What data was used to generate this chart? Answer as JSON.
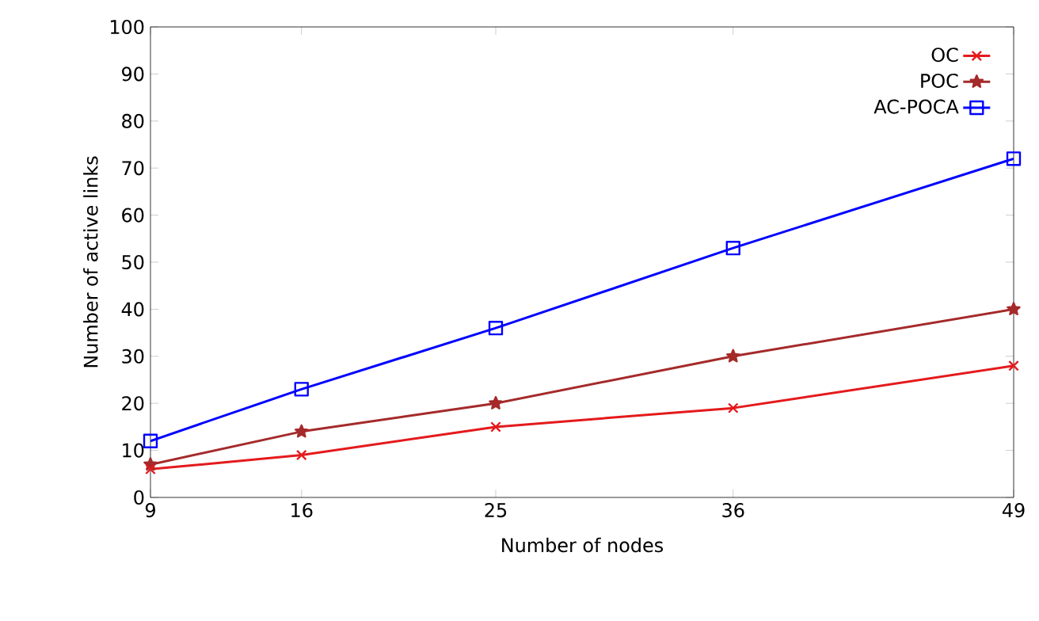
{
  "chart_data": {
    "type": "line",
    "xlabel": "Number of nodes",
    "ylabel": "Number of active links",
    "x": [
      9,
      16,
      25,
      36,
      49
    ],
    "xlim": [
      9,
      49
    ],
    "xticks": [
      9,
      16,
      25,
      36,
      49
    ],
    "ylim": [
      0,
      100
    ],
    "yticks": [
      0,
      10,
      20,
      30,
      40,
      50,
      60,
      70,
      80,
      90,
      100
    ],
    "legend": "top right",
    "grid": false,
    "line_style": "solid",
    "series": [
      {
        "name": "OC",
        "color": "#e41a1c",
        "marker": "cross",
        "values": [
          6,
          9,
          15,
          19,
          28
        ]
      },
      {
        "name": "POC",
        "color": "#a52a2a",
        "marker": "star",
        "values": [
          7,
          14,
          20,
          30,
          40
        ]
      },
      {
        "name": "AC-POCA",
        "color": "#0000ff",
        "marker": "square",
        "values": [
          12,
          23,
          36,
          53,
          72
        ]
      }
    ]
  }
}
